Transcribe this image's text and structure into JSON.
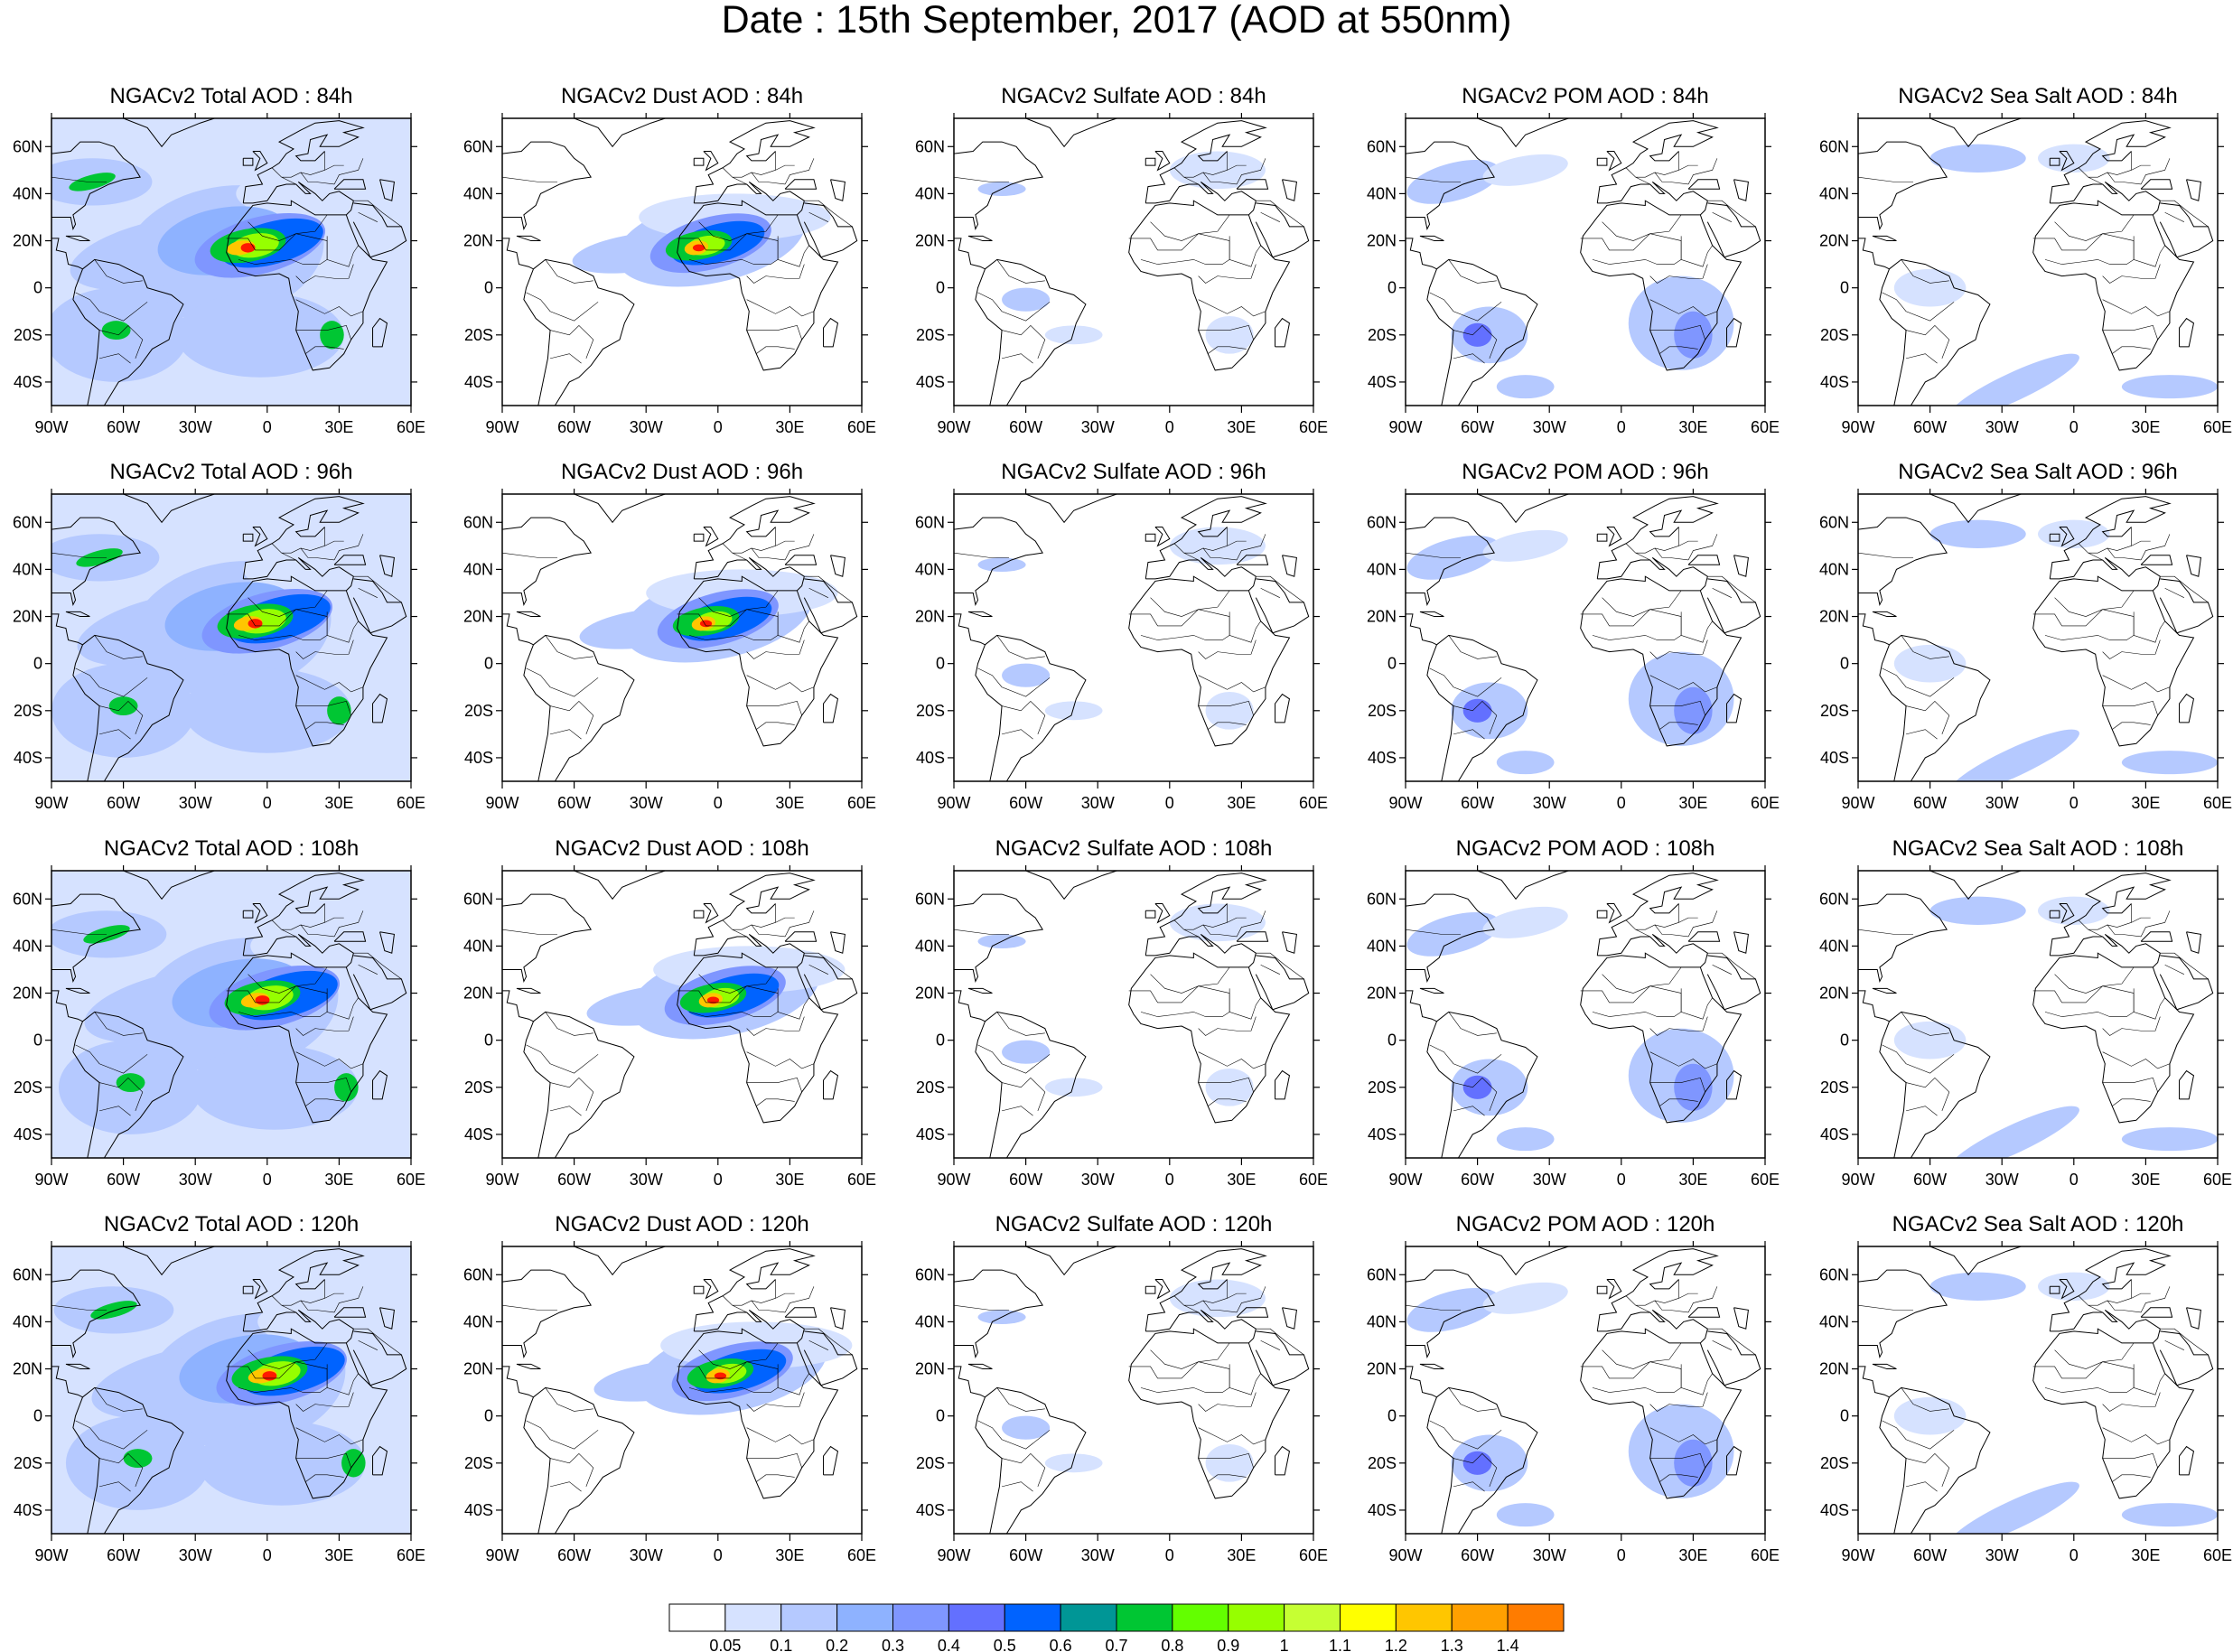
{
  "title": "Date : 15th September, 2017 (AOD at 550nm)",
  "rows": [
    {
      "panels": [
        {
          "title": "NGACv2 Total AOD : 84h",
          "field": "total"
        },
        {
          "title": "NGACv2 Dust AOD : 84h",
          "field": "dust"
        },
        {
          "title": "NGACv2 Sulfate AOD : 84h",
          "field": "sulfate"
        },
        {
          "title": "NGACv2 POM AOD : 84h",
          "field": "pom"
        },
        {
          "title": "NGACv2 Sea Salt AOD : 84h",
          "field": "seasalt"
        }
      ]
    },
    {
      "panels": [
        {
          "title": "NGACv2 Total AOD : 96h",
          "field": "total"
        },
        {
          "title": "NGACv2 Dust AOD : 96h",
          "field": "dust"
        },
        {
          "title": "NGACv2 Sulfate AOD : 96h",
          "field": "sulfate"
        },
        {
          "title": "NGACv2 POM AOD : 96h",
          "field": "pom"
        },
        {
          "title": "NGACv2 Sea Salt AOD : 96h",
          "field": "seasalt"
        }
      ]
    },
    {
      "panels": [
        {
          "title": "NGACv2 Total AOD : 108h",
          "field": "total"
        },
        {
          "title": "NGACv2 Dust AOD : 108h",
          "field": "dust"
        },
        {
          "title": "NGACv2 Sulfate AOD : 108h",
          "field": "sulfate"
        },
        {
          "title": "NGACv2 POM AOD : 108h",
          "field": "pom"
        },
        {
          "title": "NGACv2 Sea Salt AOD : 108h",
          "field": "seasalt"
        }
      ]
    },
    {
      "panels": [
        {
          "title": "NGACv2 Total AOD : 120h",
          "field": "total"
        },
        {
          "title": "NGACv2 Dust AOD : 120h",
          "field": "dust"
        },
        {
          "title": "NGACv2 Sulfate AOD : 120h",
          "field": "sulfate"
        },
        {
          "title": "NGACv2 POM AOD : 120h",
          "field": "pom"
        },
        {
          "title": "NGACv2 Sea Salt  AOD : 120h",
          "field": "seasalt"
        }
      ]
    }
  ],
  "axes": {
    "lon_ticks": [
      "90W",
      "60W",
      "30W",
      "0",
      "30E",
      "60E"
    ],
    "lat_ticks": [
      "60N",
      "40N",
      "20N",
      "0",
      "20S",
      "40S"
    ],
    "lon_range": [
      -90,
      60
    ],
    "lat_range": [
      -50,
      72
    ]
  },
  "colorbar": {
    "levels": [
      "0.05",
      "0.1",
      "0.2",
      "0.3",
      "0.4",
      "0.5",
      "0.6",
      "0.7",
      "0.8",
      "0.9",
      "1",
      "1.1",
      "1.2",
      "1.3",
      "1.4"
    ],
    "colors": [
      "#ffffff",
      "#d6e2ff",
      "#b5c9ff",
      "#8eb2ff",
      "#7f96ff",
      "#6370ff",
      "#0063ff",
      "#009696",
      "#00c633",
      "#63ff00",
      "#96ff00",
      "#c6ff33",
      "#ffff00",
      "#ffc600",
      "#ffa000",
      "#ff7c00",
      "#ff1900"
    ]
  },
  "map_colors": {
    "ocean_light": "#d6e2ff",
    "coast": "#000000"
  }
}
